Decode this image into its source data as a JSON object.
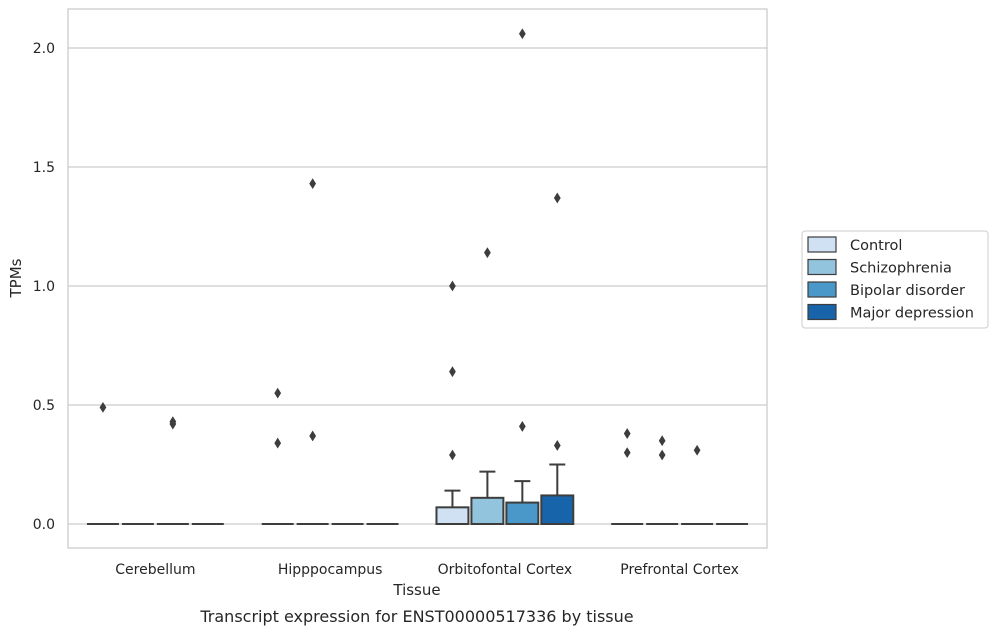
{
  "chart_data": {
    "type": "box",
    "xlabel": "Tissue",
    "ylabel": "TPMs",
    "caption": "Transcript expression for ENST00000517336 by tissue",
    "ylim": [
      -0.1,
      2.17
    ],
    "yticks": [
      "0.0",
      "0.5",
      "1.0",
      "1.5",
      "2.0"
    ],
    "grid": "horizontal",
    "legend_position": "right",
    "categories": [
      "Cerebellum",
      "Hipppocampus",
      "Orbitofontal Cortex",
      "Prefrontal Cortex"
    ],
    "series": [
      {
        "name": "Control",
        "color": "#cfe1f2"
      },
      {
        "name": "Schizophrenia",
        "color": "#93c4de"
      },
      {
        "name": "Bipolar disorder",
        "color": "#4a98c9"
      },
      {
        "name": "Major depression",
        "color": "#1764ab"
      }
    ],
    "boxes": [
      [
        {
          "q1": 0,
          "median": 0,
          "q3": 0,
          "whisker_low": 0,
          "whisker_high": 0,
          "outliers": [
            0.49
          ]
        },
        {
          "q1": 0,
          "median": 0,
          "q3": 0,
          "whisker_low": 0,
          "whisker_high": 0,
          "outliers": []
        },
        {
          "q1": 0,
          "median": 0,
          "q3": 0,
          "whisker_low": 0,
          "whisker_high": 0,
          "outliers": [
            0.42,
            0.43
          ]
        },
        {
          "q1": 0,
          "median": 0,
          "q3": 0,
          "whisker_low": 0,
          "whisker_high": 0,
          "outliers": []
        }
      ],
      [
        {
          "q1": 0,
          "median": 0,
          "q3": 0,
          "whisker_low": 0,
          "whisker_high": 0,
          "outliers": [
            0.55,
            0.34
          ]
        },
        {
          "q1": 0,
          "median": 0,
          "q3": 0,
          "whisker_low": 0,
          "whisker_high": 0,
          "outliers": [
            1.43,
            0.37
          ]
        },
        {
          "q1": 0,
          "median": 0,
          "q3": 0,
          "whisker_low": 0,
          "whisker_high": 0,
          "outliers": []
        },
        {
          "q1": 0,
          "median": 0,
          "q3": 0,
          "whisker_low": 0,
          "whisker_high": 0,
          "outliers": []
        }
      ],
      [
        {
          "q1": 0,
          "median": 0,
          "q3": 0.07,
          "whisker_low": 0,
          "whisker_high": 0.14,
          "outliers": [
            1.0,
            0.64,
            0.29
          ]
        },
        {
          "q1": 0,
          "median": 0,
          "q3": 0.11,
          "whisker_low": 0,
          "whisker_high": 0.22,
          "outliers": [
            1.14
          ]
        },
        {
          "q1": 0,
          "median": 0,
          "q3": 0.09,
          "whisker_low": 0,
          "whisker_high": 0.18,
          "outliers": [
            2.06,
            0.41
          ]
        },
        {
          "q1": 0,
          "median": 0,
          "q3": 0.12,
          "whisker_low": 0,
          "whisker_high": 0.25,
          "outliers": [
            1.37,
            0.33
          ]
        }
      ],
      [
        {
          "q1": 0,
          "median": 0,
          "q3": 0,
          "whisker_low": 0,
          "whisker_high": 0,
          "outliers": [
            0.38,
            0.3
          ]
        },
        {
          "q1": 0,
          "median": 0,
          "q3": 0,
          "whisker_low": 0,
          "whisker_high": 0,
          "outliers": [
            0.35,
            0.29
          ]
        },
        {
          "q1": 0,
          "median": 0,
          "q3": 0,
          "whisker_low": 0,
          "whisker_high": 0,
          "outliers": [
            0.31
          ]
        },
        {
          "q1": 0,
          "median": 0,
          "q3": 0,
          "whisker_low": 0,
          "whisker_high": 0,
          "outliers": []
        }
      ]
    ]
  }
}
